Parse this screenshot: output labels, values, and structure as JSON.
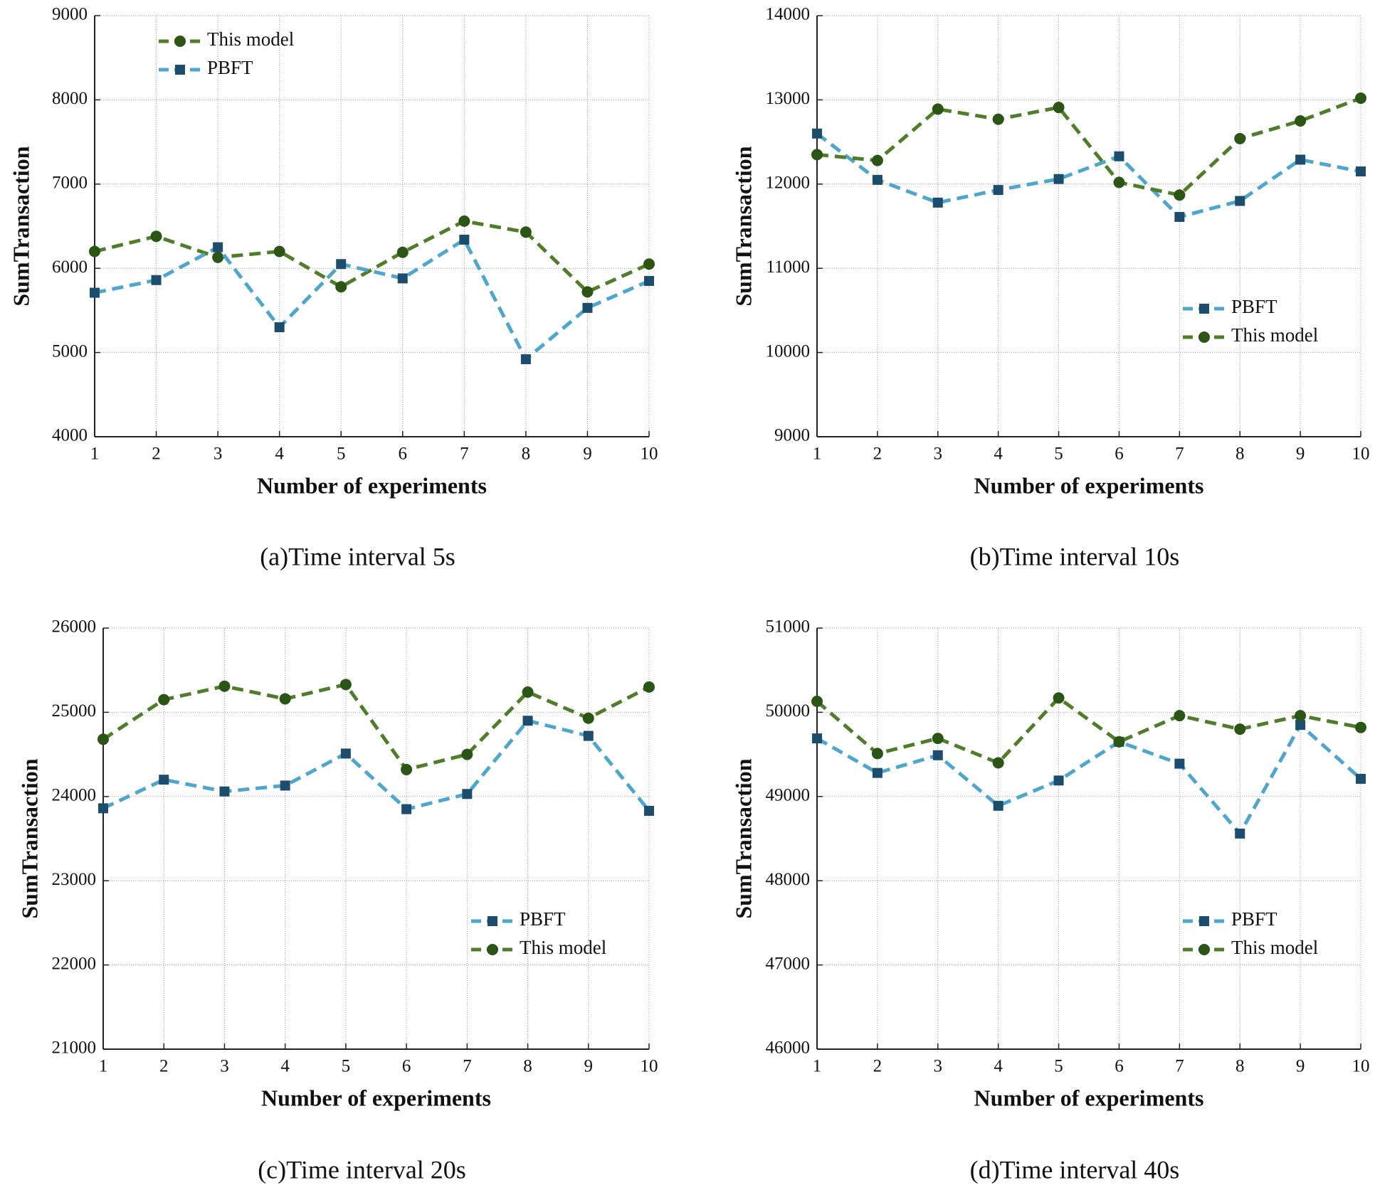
{
  "chart_data": [
    {
      "type": "line",
      "caption": "(a)Time interval 5s",
      "xlabel": "Number of experiments",
      "ylabel": "SumTransaction",
      "x": [
        1,
        2,
        3,
        4,
        5,
        6,
        7,
        8,
        9,
        10
      ],
      "xlim": [
        1,
        10
      ],
      "xticks": [
        1,
        2,
        3,
        4,
        5,
        6,
        7,
        8,
        9,
        10
      ],
      "ylim": [
        4000,
        9000
      ],
      "yticks": [
        4000,
        5000,
        6000,
        7000,
        8000,
        9000
      ],
      "grid": true,
      "legend": "upper-left",
      "series": [
        {
          "name": "This model",
          "color": "#4f7d2a",
          "marker_color": "#2b5515",
          "marker": "circle",
          "values": [
            6200,
            6380,
            6130,
            6200,
            5780,
            6190,
            6560,
            6430,
            5720,
            6050
          ]
        },
        {
          "name": "PBFT",
          "color": "#4ea6cc",
          "marker_color": "#1d4d6c",
          "marker": "square",
          "values": [
            5710,
            5860,
            6250,
            5300,
            6050,
            5880,
            6340,
            4920,
            5530,
            5850
          ]
        }
      ]
    },
    {
      "type": "line",
      "caption": "(b)Time interval 10s",
      "xlabel": "Number of experiments",
      "ylabel": "SumTransaction",
      "x": [
        1,
        2,
        3,
        4,
        5,
        6,
        7,
        8,
        9,
        10
      ],
      "xlim": [
        1,
        10
      ],
      "xticks": [
        1,
        2,
        3,
        4,
        5,
        6,
        7,
        8,
        9,
        10
      ],
      "ylim": [
        9000,
        14000
      ],
      "yticks": [
        9000,
        10000,
        11000,
        12000,
        13000,
        14000
      ],
      "grid": true,
      "legend": "lower-right",
      "series": [
        {
          "name": "PBFT",
          "color": "#4ea6cc",
          "marker_color": "#1d4d6c",
          "marker": "square",
          "values": [
            12600,
            12050,
            11780,
            11930,
            12060,
            12330,
            11610,
            11800,
            12290,
            12150
          ]
        },
        {
          "name": "This model",
          "color": "#4f7d2a",
          "marker_color": "#2b5515",
          "marker": "circle",
          "values": [
            12350,
            12280,
            12890,
            12770,
            12910,
            12020,
            11870,
            12540,
            12750,
            13020
          ]
        }
      ]
    },
    {
      "type": "line",
      "caption": "(c)Time interval 20s",
      "xlabel": "Number of experiments",
      "ylabel": "SumTransaction",
      "x": [
        1,
        2,
        3,
        4,
        5,
        6,
        7,
        8,
        9,
        10
      ],
      "xlim": [
        1,
        10
      ],
      "xticks": [
        1,
        2,
        3,
        4,
        5,
        6,
        7,
        8,
        9,
        10
      ],
      "ylim": [
        21000,
        26000
      ],
      "yticks": [
        21000,
        22000,
        23000,
        24000,
        25000,
        26000
      ],
      "grid": true,
      "legend": "lower-right",
      "series": [
        {
          "name": "PBFT",
          "color": "#4ea6cc",
          "marker_color": "#1d4d6c",
          "marker": "square",
          "values": [
            23860,
            24200,
            24060,
            24130,
            24510,
            23850,
            24030,
            24900,
            24720,
            23830
          ]
        },
        {
          "name": "This model",
          "color": "#4f7d2a",
          "marker_color": "#2b5515",
          "marker": "circle",
          "values": [
            24680,
            25150,
            25310,
            25160,
            25330,
            24320,
            24500,
            25240,
            24930,
            25300
          ]
        }
      ]
    },
    {
      "type": "line",
      "caption": "(d)Time interval 40s",
      "xlabel": "Number of experiments",
      "ylabel": "SumTransaction",
      "x": [
        1,
        2,
        3,
        4,
        5,
        6,
        7,
        8,
        9,
        10
      ],
      "xlim": [
        1,
        10
      ],
      "xticks": [
        1,
        2,
        3,
        4,
        5,
        6,
        7,
        8,
        9,
        10
      ],
      "ylim": [
        46000,
        51000
      ],
      "yticks": [
        46000,
        47000,
        48000,
        49000,
        50000,
        51000
      ],
      "grid": true,
      "legend": "lower-right",
      "series": [
        {
          "name": "PBFT",
          "color": "#4ea6cc",
          "marker_color": "#1d4d6c",
          "marker": "square",
          "values": [
            49690,
            49280,
            49490,
            48890,
            49190,
            49650,
            49390,
            48560,
            49850,
            49210
          ]
        },
        {
          "name": "This model",
          "color": "#4f7d2a",
          "marker_color": "#2b5515",
          "marker": "circle",
          "values": [
            50130,
            49510,
            49690,
            49400,
            50170,
            49650,
            49960,
            49800,
            49960,
            49820
          ]
        }
      ]
    }
  ]
}
